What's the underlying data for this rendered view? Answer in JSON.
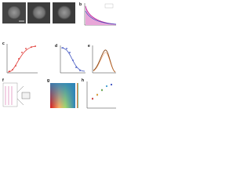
{
  "figure": {
    "panels": [
      {
        "label": "b"
      },
      {
        "label": "c"
      },
      {
        "label": "d"
      },
      {
        "label": "e"
      },
      {
        "label": "f"
      },
      {
        "label": "g"
      },
      {
        "label": "h"
      }
    ]
  }
}
